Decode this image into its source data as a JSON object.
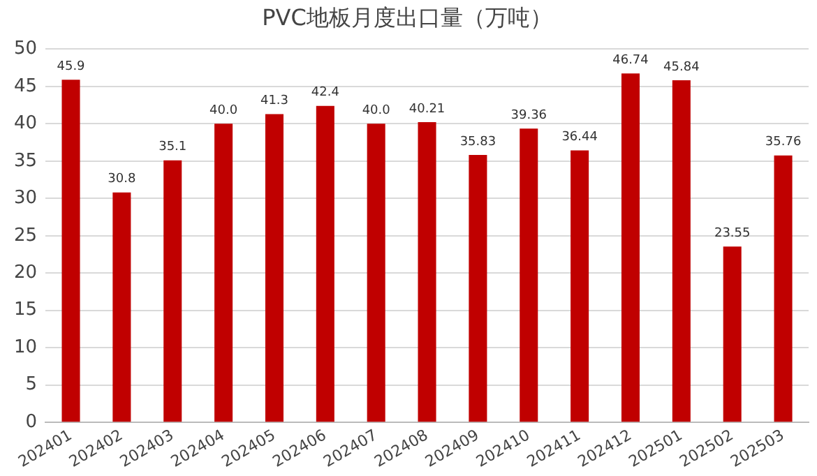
{
  "chart_data": {
    "type": "bar",
    "title": "PVC地板月度出口量（万吨）",
    "categories": [
      "202401",
      "202402",
      "202403",
      "202404",
      "202405",
      "202406",
      "202407",
      "202408",
      "202409",
      "202410",
      "202411",
      "202412",
      "202501",
      "202502",
      "202503"
    ],
    "values": [
      45.9,
      30.8,
      35.1,
      40.0,
      41.3,
      42.4,
      40.0,
      40.21,
      35.83,
      39.36,
      36.44,
      46.74,
      45.84,
      23.55,
      35.76
    ],
    "value_labels": [
      "45.9",
      "30.8",
      "35.1",
      "40.0",
      "41.3",
      "42.4",
      "40.0",
      "40.21",
      "35.83",
      "39.36",
      "36.44",
      "46.74",
      "45.84",
      "23.55",
      "35.76"
    ],
    "color": "#c00000",
    "ylim": [
      0,
      50
    ],
    "yticks": [
      0,
      5,
      10,
      15,
      20,
      25,
      30,
      35,
      40,
      45,
      50
    ],
    "grid": "y",
    "legend": false
  }
}
